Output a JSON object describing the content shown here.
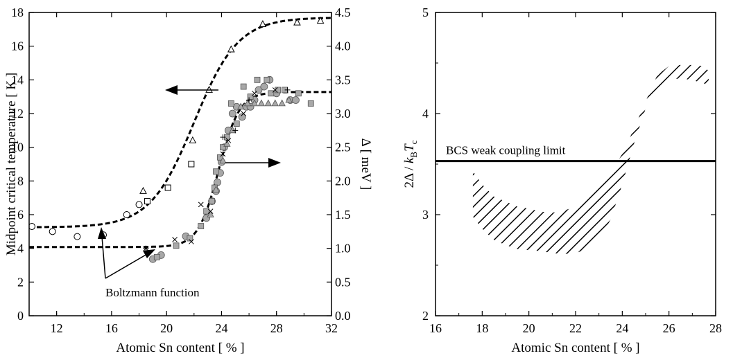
{
  "colors": {
    "axis": "#000000",
    "marker_fill_gray": "#a8a8a8",
    "curve": "#000000"
  },
  "chart_data": [
    {
      "type": "scatter",
      "xlabel": "Atomic Sn content [ % ]",
      "ylabel": "Midpoint critical temperature [ K ]",
      "y2label": "Δ [ meV ]",
      "xlim": [
        10,
        32
      ],
      "ylim": [
        0,
        18
      ],
      "y2lim": [
        0.0,
        4.5
      ],
      "xticks": [
        "12",
        "16",
        "20",
        "24",
        "28",
        "32"
      ],
      "yticks": [
        "0",
        "2",
        "4",
        "6",
        "8",
        "10",
        "12",
        "14",
        "16",
        "18"
      ],
      "y2ticks": [
        "0.0",
        "0.5",
        "1.0",
        "1.5",
        "2.0",
        "2.5",
        "3.0",
        "3.5",
        "4.0",
        "4.5"
      ],
      "annotations": {
        "boltzmann": "Boltzmann function"
      },
      "tc_series": [
        {
          "marker": "circle-open",
          "points": [
            [
              10.2,
              5.3
            ],
            [
              11.7,
              5.0
            ],
            [
              13.5,
              4.7
            ],
            [
              15.4,
              4.8
            ],
            [
              17.1,
              6.0
            ],
            [
              18,
              6.6
            ]
          ]
        },
        {
          "marker": "square-open",
          "points": [
            [
              18.6,
              6.8
            ],
            [
              20.1,
              7.6
            ],
            [
              21.8,
              9.0
            ]
          ]
        },
        {
          "marker": "triangle-open",
          "points": [
            [
              18.3,
              7.4
            ],
            [
              21.9,
              10.4
            ],
            [
              23.1,
              13.4
            ],
            [
              24.7,
              15.8
            ],
            [
              27,
              17.3
            ],
            [
              29.5,
              17.4
            ],
            [
              31.2,
              17.5
            ]
          ]
        }
      ],
      "gap_series": [
        {
          "marker": "circle-gray",
          "points": [
            [
              19,
              0.84
            ],
            [
              19.6,
              0.9
            ],
            [
              21.4,
              1.18
            ],
            [
              22.9,
              1.45
            ],
            [
              23.3,
              1.7
            ],
            [
              23.6,
              1.85
            ],
            [
              23.7,
              1.98
            ],
            [
              23.9,
              2.12
            ],
            [
              24,
              2.28
            ],
            [
              24.2,
              2.5
            ],
            [
              24.5,
              2.75
            ],
            [
              24.8,
              3.0
            ],
            [
              25.1,
              3.1
            ],
            [
              25.5,
              2.95
            ],
            [
              25.8,
              3.1
            ],
            [
              26.1,
              3.1
            ],
            [
              26.4,
              3.2
            ],
            [
              26.7,
              3.35
            ],
            [
              27.1,
              3.4
            ],
            [
              27.5,
              3.5
            ],
            [
              28,
              3.3
            ],
            [
              29,
              3.2
            ],
            [
              29.4,
              3.2
            ]
          ]
        },
        {
          "marker": "square-gray",
          "points": [
            [
              19.3,
              0.87
            ],
            [
              20.7,
              1.04
            ],
            [
              21.7,
              1.15
            ],
            [
              22.5,
              1.33
            ],
            [
              22.9,
              1.55
            ],
            [
              23.3,
              1.7
            ],
            [
              23.5,
              1.9
            ],
            [
              23.6,
              2.14
            ],
            [
              23.9,
              2.35
            ],
            [
              24.1,
              2.5
            ],
            [
              24.4,
              2.65
            ],
            [
              24.7,
              3.15
            ],
            [
              25.1,
              2.85
            ],
            [
              25.6,
              3.4
            ],
            [
              26.1,
              3.25
            ],
            [
              26.6,
              3.5
            ],
            [
              27.3,
              3.5
            ],
            [
              27.6,
              3.3
            ],
            [
              28.1,
              3.35
            ],
            [
              28.6,
              3.35
            ],
            [
              29.6,
              3.3
            ],
            [
              30.5,
              3.15
            ]
          ]
        },
        {
          "marker": "triangle-gray",
          "points": [
            [
              23.2,
              1.5
            ],
            [
              23.6,
              1.87
            ],
            [
              24.1,
              2.3
            ],
            [
              24.4,
              2.55
            ],
            [
              24.8,
              2.75
            ],
            [
              25.4,
              3.1
            ],
            [
              25.9,
              3.15
            ],
            [
              26.4,
              3.15
            ],
            [
              26.9,
              3.15
            ],
            [
              27.4,
              3.15
            ],
            [
              27.9,
              3.15
            ],
            [
              28.4,
              3.15
            ],
            [
              28.9,
              3.2
            ]
          ]
        },
        {
          "marker": "cross",
          "points": [
            [
              18.5,
              1.0
            ],
            [
              20.6,
              1.13
            ],
            [
              21.8,
              1.1
            ],
            [
              22.5,
              1.65
            ],
            [
              23.2,
              1.55
            ],
            [
              24.1,
              2.4
            ],
            [
              24.5,
              2.6
            ],
            [
              25.6,
              3.0
            ],
            [
              26.4,
              3.3
            ],
            [
              27.9,
              3.35
            ]
          ]
        },
        {
          "marker": "plus",
          "points": [
            [
              18.5,
              1.0
            ],
            [
              24.1,
              2.65
            ],
            [
              25,
              2.75
            ],
            [
              26,
              3.2
            ],
            [
              28.8,
              3.35
            ]
          ]
        }
      ],
      "boltzmann_fits": [
        {
          "axis": "left",
          "A1": 5.25,
          "A2": 17.7,
          "x0": 22.0,
          "dx": 1.6
        },
        {
          "axis": "right",
          "A1": 1.02,
          "A2": 3.32,
          "x0": 23.8,
          "dx": 0.75
        }
      ]
    },
    {
      "type": "area",
      "xlabel": "Atomic Sn content [ % ]",
      "ylabel": "2Δ / kBTc",
      "xlim": [
        16,
        28
      ],
      "ylim": [
        2,
        5
      ],
      "xticks": [
        "16",
        "18",
        "20",
        "22",
        "24",
        "26",
        "28"
      ],
      "yticks": [
        "2",
        "3",
        "4",
        "5"
      ],
      "reference_line": {
        "y": 3.53,
        "label": "BCS weak coupling limit"
      },
      "band": {
        "x": [
          17.6,
          18.0,
          18.5,
          19.0,
          19.5,
          20.0,
          20.5,
          21.0,
          21.5,
          22.0,
          22.5,
          23.0,
          23.5,
          24.0,
          24.5,
          25.0,
          25.5,
          26.0,
          26.5,
          27.0,
          27.5,
          27.7
        ],
        "upper": [
          3.43,
          3.3,
          3.18,
          3.13,
          3.08,
          3.06,
          3.03,
          3.02,
          3.04,
          3.08,
          3.15,
          3.27,
          3.42,
          3.6,
          3.85,
          4.12,
          4.38,
          4.47,
          4.48,
          4.48,
          4.47,
          4.42
        ],
        "lower": [
          2.98,
          2.86,
          2.75,
          2.7,
          2.66,
          2.65,
          2.64,
          2.62,
          2.61,
          2.62,
          2.66,
          2.75,
          2.95,
          3.3,
          3.7,
          4.05,
          4.25,
          4.33,
          4.35,
          4.33,
          4.3,
          4.25
        ]
      }
    }
  ]
}
